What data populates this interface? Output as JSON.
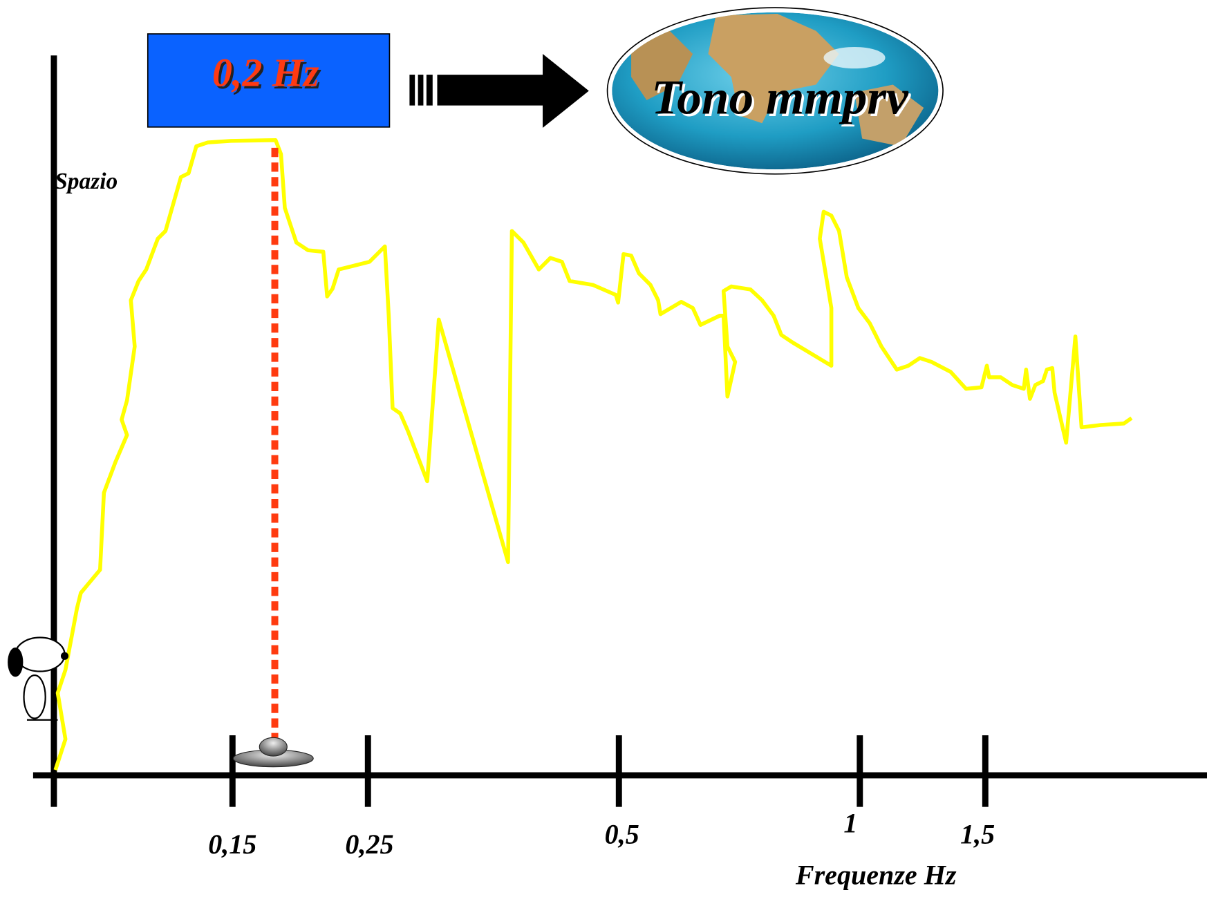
{
  "badge": "0,2 Hz",
  "globe_label": "Tono mmprv",
  "y_axis_label": "Spazio",
  "x_axis_label": "Frequenze Hz",
  "x_tick_labels": [
    "0,15",
    "0,25",
    "0,5",
    "1",
    "1,5"
  ]
}
